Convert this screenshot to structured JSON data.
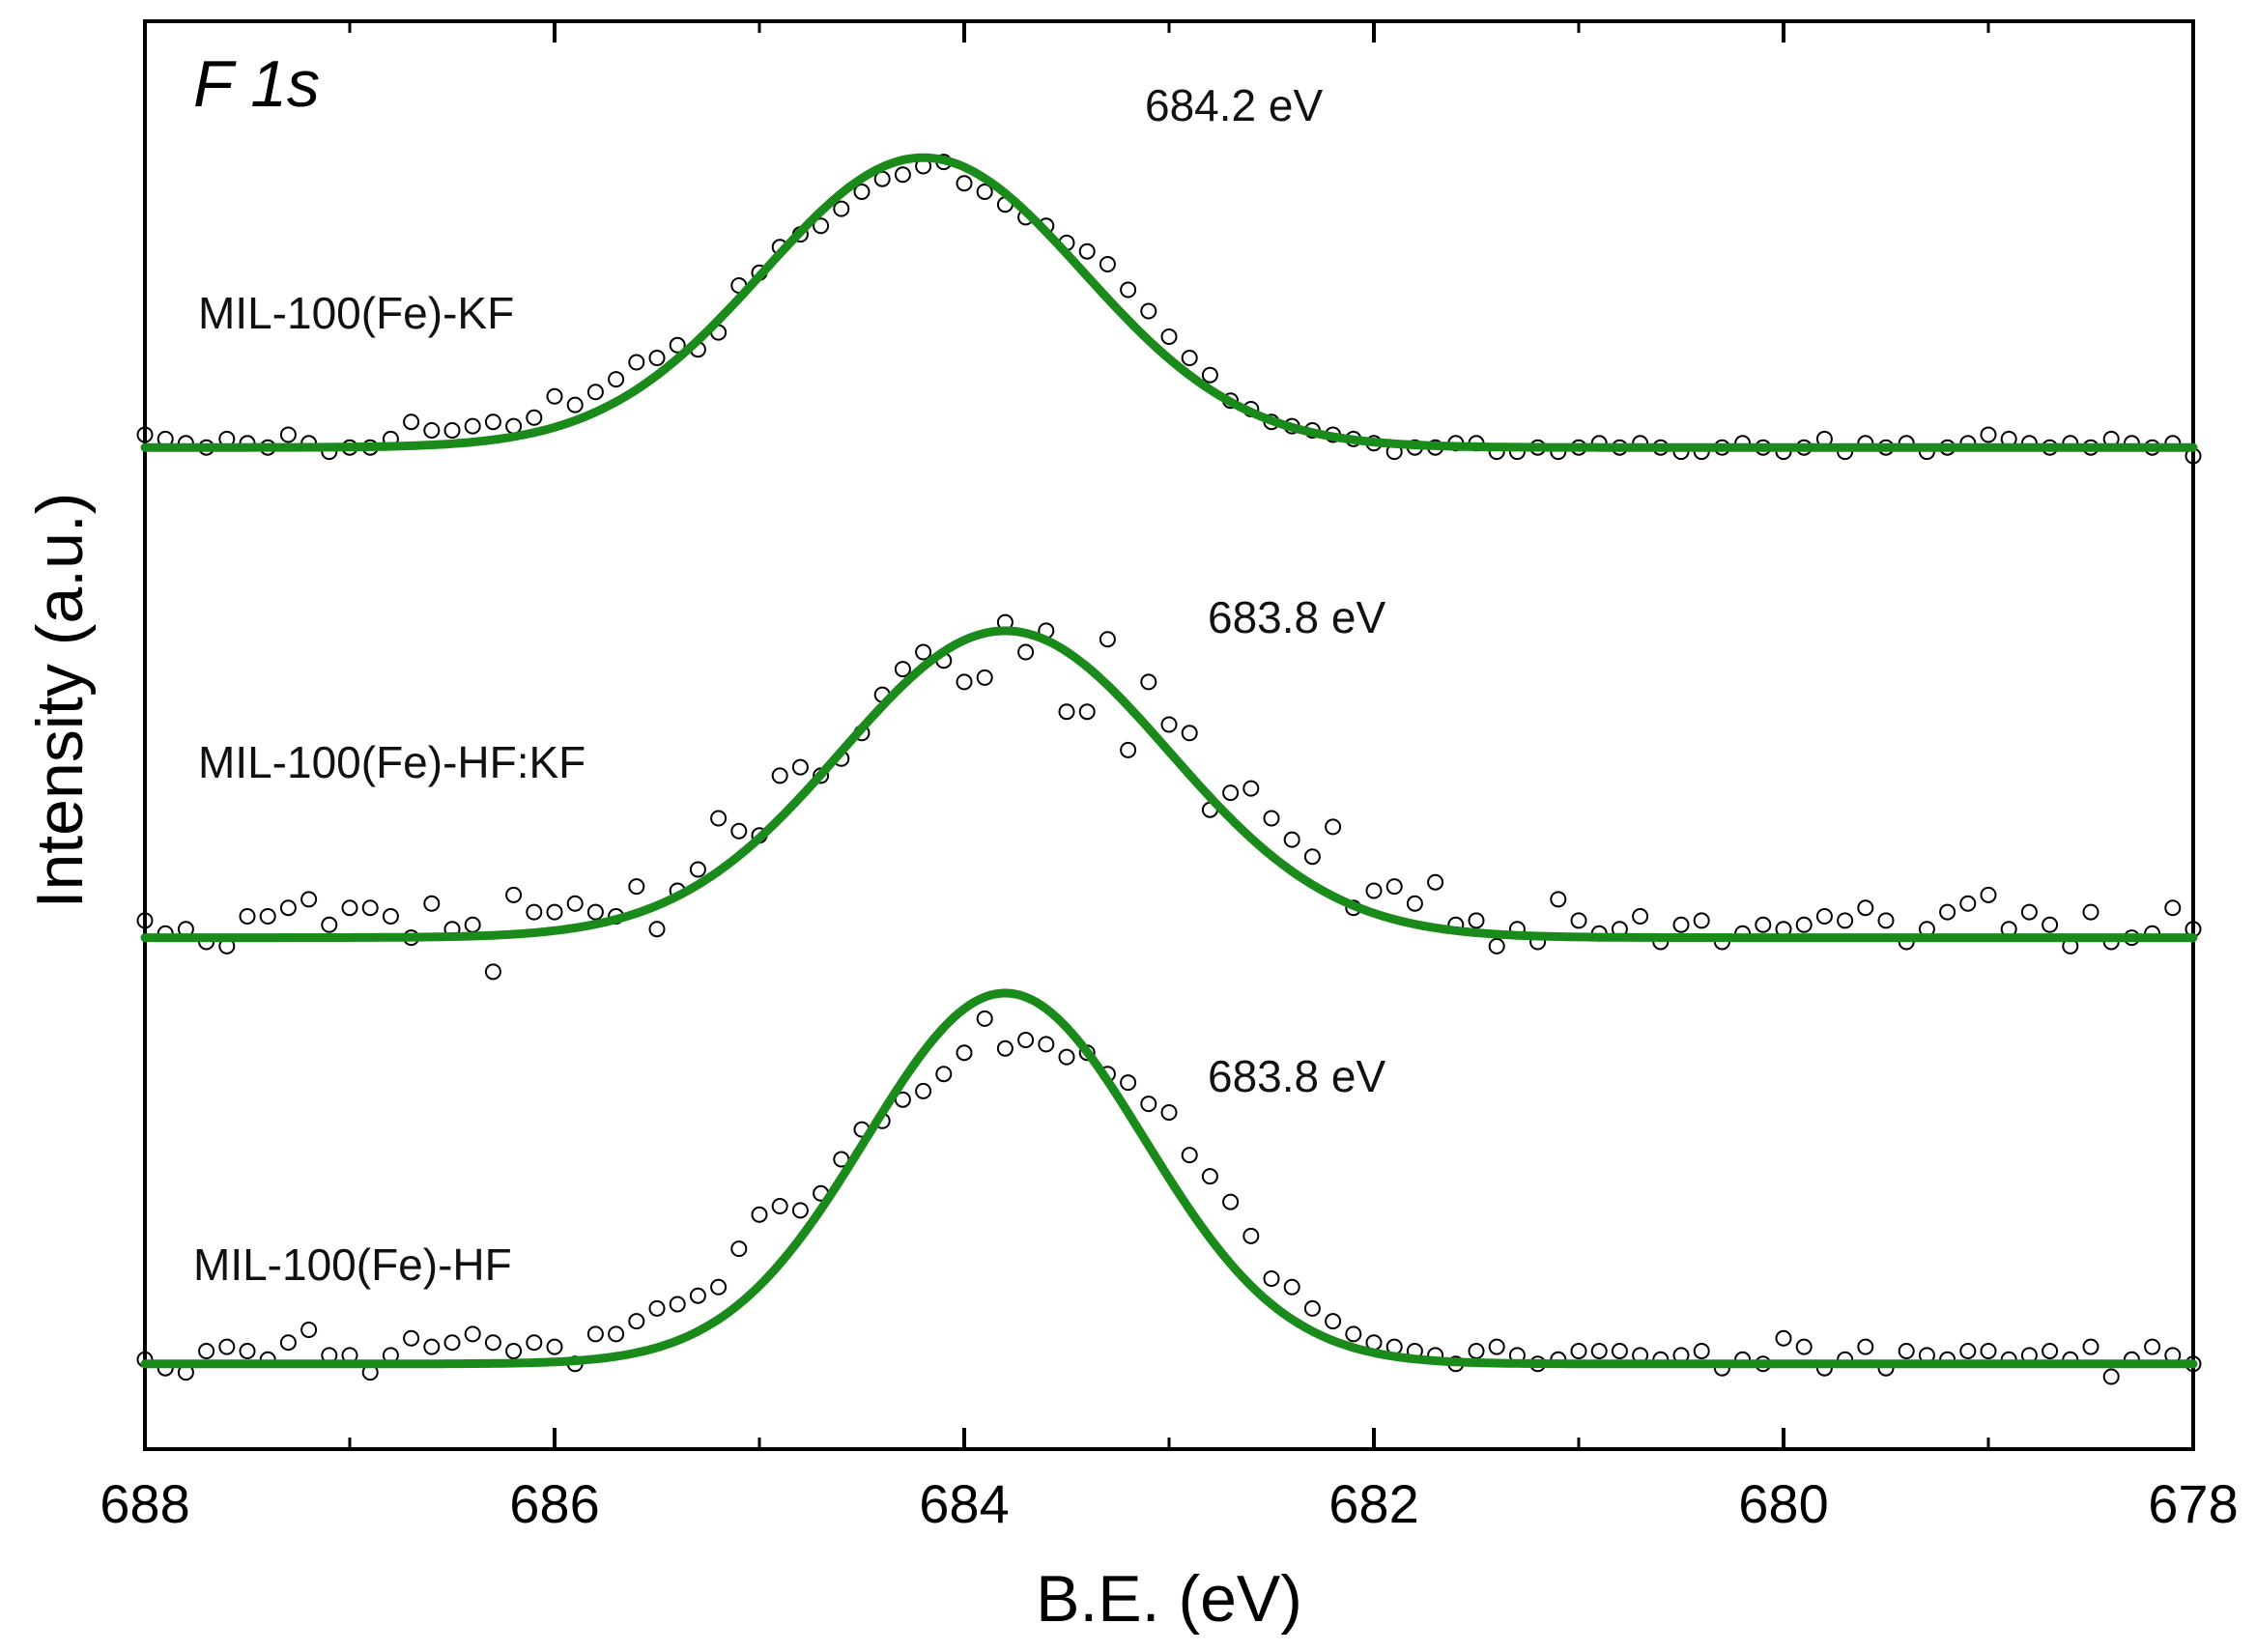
{
  "chart_data": {
    "type": "scatter",
    "title": "F 1s",
    "xlabel": "B.E. (eV)",
    "ylabel": "Intensity (a.u.)",
    "xlim": [
      688,
      678
    ],
    "x_reversed": true,
    "xticks": [
      688,
      686,
      684,
      682,
      680,
      678
    ],
    "xticks_minor": [
      687,
      685,
      683,
      681,
      679
    ],
    "yticks": [],
    "ylim": [
      0,
      3.35
    ],
    "fit_color": "#1a8a1a",
    "marker_color": "#000000",
    "series": [
      {
        "name": "MIL-100(Fe)-KF",
        "peak_label": "684.2 eV",
        "peak_center_ev": 684.2,
        "baseline": 2.35,
        "amplitude": 0.68,
        "sigma_ev": 0.78,
        "scatter": [
          [
            688.0,
            2.38
          ],
          [
            687.9,
            2.37
          ],
          [
            687.8,
            2.36
          ],
          [
            687.7,
            2.35
          ],
          [
            687.6,
            2.37
          ],
          [
            687.5,
            2.36
          ],
          [
            687.4,
            2.35
          ],
          [
            687.3,
            2.38
          ],
          [
            687.2,
            2.36
          ],
          [
            687.1,
            2.34
          ],
          [
            687.0,
            2.35
          ],
          [
            686.9,
            2.35
          ],
          [
            686.8,
            2.37
          ],
          [
            686.7,
            2.41
          ],
          [
            686.6,
            2.39
          ],
          [
            686.5,
            2.39
          ],
          [
            686.4,
            2.4
          ],
          [
            686.3,
            2.41
          ],
          [
            686.2,
            2.4
          ],
          [
            686.1,
            2.42
          ],
          [
            686.0,
            2.47
          ],
          [
            685.9,
            2.45
          ],
          [
            685.8,
            2.48
          ],
          [
            685.7,
            2.51
          ],
          [
            685.6,
            2.55
          ],
          [
            685.5,
            2.56
          ],
          [
            685.4,
            2.59
          ],
          [
            685.3,
            2.58
          ],
          [
            685.2,
            2.62
          ],
          [
            685.1,
            2.73
          ],
          [
            685.0,
            2.76
          ],
          [
            684.9,
            2.82
          ],
          [
            684.8,
            2.85
          ],
          [
            684.7,
            2.87
          ],
          [
            684.6,
            2.91
          ],
          [
            684.5,
            2.95
          ],
          [
            684.4,
            2.98
          ],
          [
            684.3,
            2.99
          ],
          [
            684.2,
            3.01
          ],
          [
            684.1,
            3.02
          ],
          [
            684.0,
            2.97
          ],
          [
            683.9,
            2.95
          ],
          [
            683.8,
            2.92
          ],
          [
            683.7,
            2.89
          ],
          [
            683.6,
            2.87
          ],
          [
            683.5,
            2.83
          ],
          [
            683.4,
            2.81
          ],
          [
            683.3,
            2.78
          ],
          [
            683.2,
            2.72
          ],
          [
            683.1,
            2.67
          ],
          [
            683.0,
            2.61
          ],
          [
            682.9,
            2.56
          ],
          [
            682.8,
            2.52
          ],
          [
            682.7,
            2.46
          ],
          [
            682.6,
            2.44
          ],
          [
            682.5,
            2.41
          ],
          [
            682.4,
            2.4
          ],
          [
            682.3,
            2.39
          ],
          [
            682.2,
            2.38
          ],
          [
            682.1,
            2.37
          ],
          [
            682.0,
            2.36
          ],
          [
            681.9,
            2.34
          ],
          [
            681.8,
            2.35
          ],
          [
            681.7,
            2.35
          ],
          [
            681.6,
            2.36
          ],
          [
            681.5,
            2.36
          ],
          [
            681.4,
            2.34
          ],
          [
            681.3,
            2.34
          ],
          [
            681.2,
            2.35
          ],
          [
            681.1,
            2.34
          ],
          [
            681.0,
            2.35
          ],
          [
            680.9,
            2.36
          ],
          [
            680.8,
            2.35
          ],
          [
            680.7,
            2.36
          ],
          [
            680.6,
            2.35
          ],
          [
            680.5,
            2.34
          ],
          [
            680.4,
            2.34
          ],
          [
            680.3,
            2.35
          ],
          [
            680.2,
            2.36
          ],
          [
            680.1,
            2.35
          ],
          [
            680.0,
            2.34
          ],
          [
            679.9,
            2.35
          ],
          [
            679.8,
            2.37
          ],
          [
            679.7,
            2.34
          ],
          [
            679.6,
            2.36
          ],
          [
            679.5,
            2.35
          ],
          [
            679.4,
            2.36
          ],
          [
            679.3,
            2.34
          ],
          [
            679.2,
            2.35
          ],
          [
            679.1,
            2.36
          ],
          [
            679.0,
            2.38
          ],
          [
            678.9,
            2.37
          ],
          [
            678.8,
            2.36
          ],
          [
            678.7,
            2.35
          ],
          [
            678.6,
            2.36
          ],
          [
            678.5,
            2.35
          ],
          [
            678.4,
            2.37
          ],
          [
            678.3,
            2.36
          ],
          [
            678.2,
            2.35
          ],
          [
            678.1,
            2.36
          ],
          [
            678.0,
            2.33
          ]
        ]
      },
      {
        "name": "MIL-100(Fe)-HF:KF",
        "peak_label": "683.8 eV",
        "peak_center_ev": 683.8,
        "baseline": 1.2,
        "amplitude": 0.72,
        "sigma_ev": 0.8,
        "scatter": [
          [
            688.0,
            1.24
          ],
          [
            687.9,
            1.21
          ],
          [
            687.8,
            1.22
          ],
          [
            687.7,
            1.19
          ],
          [
            687.6,
            1.18
          ],
          [
            687.5,
            1.25
          ],
          [
            687.4,
            1.25
          ],
          [
            687.3,
            1.27
          ],
          [
            687.2,
            1.29
          ],
          [
            687.1,
            1.23
          ],
          [
            687.0,
            1.27
          ],
          [
            686.9,
            1.27
          ],
          [
            686.8,
            1.25
          ],
          [
            686.7,
            1.2
          ],
          [
            686.6,
            1.28
          ],
          [
            686.5,
            1.22
          ],
          [
            686.4,
            1.23
          ],
          [
            686.3,
            1.12
          ],
          [
            686.2,
            1.3
          ],
          [
            686.1,
            1.26
          ],
          [
            686.0,
            1.26
          ],
          [
            685.9,
            1.28
          ],
          [
            685.8,
            1.26
          ],
          [
            685.7,
            1.25
          ],
          [
            685.6,
            1.32
          ],
          [
            685.5,
            1.22
          ],
          [
            685.4,
            1.31
          ],
          [
            685.3,
            1.36
          ],
          [
            685.2,
            1.48
          ],
          [
            685.1,
            1.45
          ],
          [
            685.0,
            1.44
          ],
          [
            684.9,
            1.58
          ],
          [
            684.8,
            1.6
          ],
          [
            684.7,
            1.58
          ],
          [
            684.6,
            1.62
          ],
          [
            684.5,
            1.68
          ],
          [
            684.4,
            1.77
          ],
          [
            684.3,
            1.83
          ],
          [
            684.2,
            1.87
          ],
          [
            684.1,
            1.85
          ],
          [
            684.0,
            1.8
          ],
          [
            683.9,
            1.81
          ],
          [
            683.8,
            1.94
          ],
          [
            683.7,
            1.87
          ],
          [
            683.6,
            1.92
          ],
          [
            683.5,
            1.73
          ],
          [
            683.4,
            1.73
          ],
          [
            683.3,
            1.9
          ],
          [
            683.2,
            1.64
          ],
          [
            683.1,
            1.8
          ],
          [
            683.0,
            1.7
          ],
          [
            682.9,
            1.68
          ],
          [
            682.8,
            1.5
          ],
          [
            682.7,
            1.54
          ],
          [
            682.6,
            1.55
          ],
          [
            682.5,
            1.48
          ],
          [
            682.4,
            1.43
          ],
          [
            682.3,
            1.39
          ],
          [
            682.2,
            1.46
          ],
          [
            682.1,
            1.27
          ],
          [
            682.0,
            1.31
          ],
          [
            681.9,
            1.32
          ],
          [
            681.8,
            1.28
          ],
          [
            681.7,
            1.33
          ],
          [
            681.6,
            1.23
          ],
          [
            681.5,
            1.24
          ],
          [
            681.4,
            1.18
          ],
          [
            681.3,
            1.22
          ],
          [
            681.2,
            1.19
          ],
          [
            681.1,
            1.29
          ],
          [
            681.0,
            1.24
          ],
          [
            680.9,
            1.21
          ],
          [
            680.8,
            1.22
          ],
          [
            680.7,
            1.25
          ],
          [
            680.6,
            1.19
          ],
          [
            680.5,
            1.23
          ],
          [
            680.4,
            1.24
          ],
          [
            680.3,
            1.19
          ],
          [
            680.2,
            1.21
          ],
          [
            680.1,
            1.23
          ],
          [
            680.0,
            1.22
          ],
          [
            679.9,
            1.23
          ],
          [
            679.8,
            1.25
          ],
          [
            679.7,
            1.24
          ],
          [
            679.6,
            1.27
          ],
          [
            679.5,
            1.24
          ],
          [
            679.4,
            1.19
          ],
          [
            679.3,
            1.22
          ],
          [
            679.2,
            1.26
          ],
          [
            679.1,
            1.28
          ],
          [
            679.0,
            1.3
          ],
          [
            678.9,
            1.22
          ],
          [
            678.8,
            1.26
          ],
          [
            678.7,
            1.23
          ],
          [
            678.6,
            1.18
          ],
          [
            678.5,
            1.26
          ],
          [
            678.4,
            1.19
          ],
          [
            678.3,
            1.2
          ],
          [
            678.2,
            1.21
          ],
          [
            678.1,
            1.27
          ],
          [
            678.0,
            1.22
          ]
        ]
      },
      {
        "name": "MIL-100(Fe)-HF",
        "peak_label": "683.8 eV",
        "peak_center_ev": 683.8,
        "baseline": 0.2,
        "amplitude": 0.87,
        "sigma_ev": 0.68,
        "scatter": [
          [
            688.0,
            0.21
          ],
          [
            687.9,
            0.19
          ],
          [
            687.8,
            0.18
          ],
          [
            687.7,
            0.23
          ],
          [
            687.6,
            0.24
          ],
          [
            687.5,
            0.23
          ],
          [
            687.4,
            0.21
          ],
          [
            687.3,
            0.25
          ],
          [
            687.2,
            0.28
          ],
          [
            687.1,
            0.22
          ],
          [
            687.0,
            0.22
          ],
          [
            686.9,
            0.18
          ],
          [
            686.8,
            0.22
          ],
          [
            686.7,
            0.26
          ],
          [
            686.6,
            0.24
          ],
          [
            686.5,
            0.25
          ],
          [
            686.4,
            0.27
          ],
          [
            686.3,
            0.25
          ],
          [
            686.2,
            0.23
          ],
          [
            686.1,
            0.25
          ],
          [
            686.0,
            0.24
          ],
          [
            685.9,
            0.2
          ],
          [
            685.8,
            0.27
          ],
          [
            685.7,
            0.27
          ],
          [
            685.6,
            0.3
          ],
          [
            685.5,
            0.33
          ],
          [
            685.4,
            0.34
          ],
          [
            685.3,
            0.36
          ],
          [
            685.2,
            0.38
          ],
          [
            685.1,
            0.47
          ],
          [
            685.0,
            0.55
          ],
          [
            684.9,
            0.57
          ],
          [
            684.8,
            0.56
          ],
          [
            684.7,
            0.6
          ],
          [
            684.6,
            0.68
          ],
          [
            684.5,
            0.75
          ],
          [
            684.4,
            0.77
          ],
          [
            684.3,
            0.82
          ],
          [
            684.2,
            0.84
          ],
          [
            684.1,
            0.88
          ],
          [
            684.0,
            0.93
          ],
          [
            683.9,
            1.01
          ],
          [
            683.8,
            0.94
          ],
          [
            683.7,
            0.96
          ],
          [
            683.6,
            0.95
          ],
          [
            683.5,
            0.92
          ],
          [
            683.4,
            0.93
          ],
          [
            683.3,
            0.88
          ],
          [
            683.2,
            0.86
          ],
          [
            683.1,
            0.81
          ],
          [
            683.0,
            0.79
          ],
          [
            682.9,
            0.69
          ],
          [
            682.8,
            0.64
          ],
          [
            682.7,
            0.58
          ],
          [
            682.6,
            0.5
          ],
          [
            682.5,
            0.4
          ],
          [
            682.4,
            0.38
          ],
          [
            682.3,
            0.33
          ],
          [
            682.2,
            0.3
          ],
          [
            682.1,
            0.27
          ],
          [
            682.0,
            0.25
          ],
          [
            681.9,
            0.24
          ],
          [
            681.8,
            0.23
          ],
          [
            681.7,
            0.22
          ],
          [
            681.6,
            0.2
          ],
          [
            681.5,
            0.23
          ],
          [
            681.4,
            0.24
          ],
          [
            681.3,
            0.22
          ],
          [
            681.2,
            0.2
          ],
          [
            681.1,
            0.21
          ],
          [
            681.0,
            0.23
          ],
          [
            680.9,
            0.23
          ],
          [
            680.8,
            0.23
          ],
          [
            680.7,
            0.22
          ],
          [
            680.6,
            0.21
          ],
          [
            680.5,
            0.22
          ],
          [
            680.4,
            0.23
          ],
          [
            680.3,
            0.19
          ],
          [
            680.2,
            0.21
          ],
          [
            680.1,
            0.2
          ],
          [
            680.0,
            0.26
          ],
          [
            679.9,
            0.24
          ],
          [
            679.8,
            0.19
          ],
          [
            679.7,
            0.21
          ],
          [
            679.6,
            0.24
          ],
          [
            679.5,
            0.19
          ],
          [
            679.4,
            0.23
          ],
          [
            679.3,
            0.22
          ],
          [
            679.2,
            0.21
          ],
          [
            679.1,
            0.23
          ],
          [
            679.0,
            0.23
          ],
          [
            678.9,
            0.21
          ],
          [
            678.8,
            0.22
          ],
          [
            678.7,
            0.23
          ],
          [
            678.6,
            0.21
          ],
          [
            678.5,
            0.24
          ],
          [
            678.4,
            0.17
          ],
          [
            678.3,
            0.21
          ],
          [
            678.2,
            0.24
          ],
          [
            678.1,
            0.22
          ],
          [
            678.0,
            0.2
          ]
        ]
      }
    ]
  }
}
